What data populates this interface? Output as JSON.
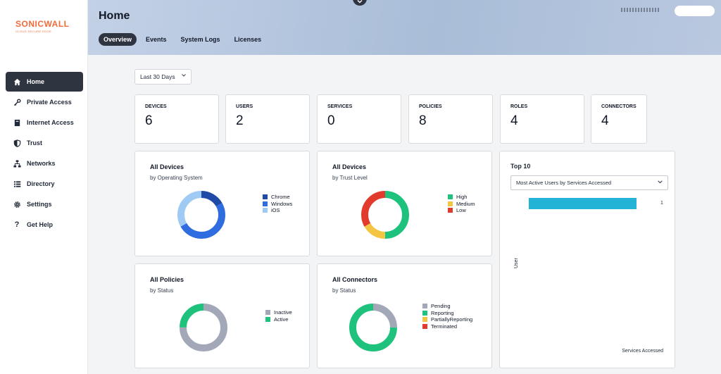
{
  "brand": {
    "name": "SONICWALL",
    "tagline": "CLOUD SECURE EDGE"
  },
  "sidebar": {
    "items": [
      {
        "label": "Home",
        "icon": "home-icon",
        "active": true
      },
      {
        "label": "Private Access",
        "icon": "key-icon"
      },
      {
        "label": "Internet Access",
        "icon": "book-icon"
      },
      {
        "label": "Trust",
        "icon": "shield-icon"
      },
      {
        "label": "Networks",
        "icon": "network-icon"
      },
      {
        "label": "Directory",
        "icon": "list-icon"
      },
      {
        "label": "Settings",
        "icon": "gear-icon"
      },
      {
        "label": "Get Help",
        "icon": "question-icon"
      }
    ]
  },
  "header": {
    "title": "Home",
    "tabs": [
      {
        "label": "Overview",
        "active": true
      },
      {
        "label": "Events"
      },
      {
        "label": "System Logs"
      },
      {
        "label": "Licenses"
      }
    ]
  },
  "filters": {
    "range": "Last 30 Days"
  },
  "stats": [
    {
      "label": "DEVICES",
      "value": "6"
    },
    {
      "label": "USERS",
      "value": "2"
    },
    {
      "label": "SERVICES",
      "value": "0"
    },
    {
      "label": "POLICIES",
      "value": "8"
    },
    {
      "label": "ROLES",
      "value": "4"
    },
    {
      "label": "CONNECTORS",
      "value": "4"
    }
  ],
  "cards": {
    "devices_os": {
      "title": "All Devices",
      "subtitle": "by Operating System",
      "legend": [
        "Chrome",
        "Windows",
        "iOS"
      ]
    },
    "devices_trust": {
      "title": "All Devices",
      "subtitle": "by Trust Level",
      "legend": [
        "High",
        "Medium",
        "Low"
      ]
    },
    "policies": {
      "title": "All Policies",
      "subtitle": "by Status",
      "legend": [
        "Inactive",
        "Active"
      ]
    },
    "connectors": {
      "title": "All Connectors",
      "subtitle": "by Status",
      "legend": [
        "Pending",
        "Reporting",
        "PartiallyReporting",
        "Terminated"
      ]
    },
    "top10": {
      "title": "Top 10",
      "select": "Most Active Users by Services Accessed",
      "bar_value": "1",
      "y_label": "User",
      "x_label": "Services Accessed"
    }
  },
  "colors": {
    "chrome": "#1f4aa8",
    "windows": "#2f6ce0",
    "ios": "#9fcaf3",
    "high": "#1ec27c",
    "medium": "#f4c542",
    "low": "#e23b2e",
    "inactive": "#a3a8b8",
    "active": "#1ec27c",
    "pending": "#a3a8b8",
    "reporting": "#1ec27c",
    "partially": "#f4c542",
    "terminated": "#e23b2e",
    "bar": "#22b3d6",
    "sidebar_active": "#2f3441"
  },
  "chart_data": [
    {
      "type": "pie",
      "title": "All Devices",
      "subtitle": "by Operating System",
      "labels": [
        "Chrome",
        "Windows",
        "iOS"
      ],
      "values": [
        1,
        3,
        2
      ]
    },
    {
      "type": "pie",
      "title": "All Devices",
      "subtitle": "by Trust Level",
      "labels": [
        "High",
        "Medium",
        "Low"
      ],
      "values": [
        3,
        1,
        2
      ]
    },
    {
      "type": "pie",
      "title": "All Policies",
      "subtitle": "by Status",
      "labels": [
        "Inactive",
        "Active"
      ],
      "values": [
        6,
        2
      ]
    },
    {
      "type": "pie",
      "title": "All Connectors",
      "subtitle": "by Status",
      "labels": [
        "Pending",
        "Reporting",
        "PartiallyReporting",
        "Terminated"
      ],
      "values": [
        1,
        3,
        0,
        0
      ]
    },
    {
      "type": "bar",
      "title": "Top 10",
      "categories": [
        ""
      ],
      "values": [
        1
      ],
      "xlabel": "Services Accessed",
      "ylabel": "User"
    }
  ]
}
